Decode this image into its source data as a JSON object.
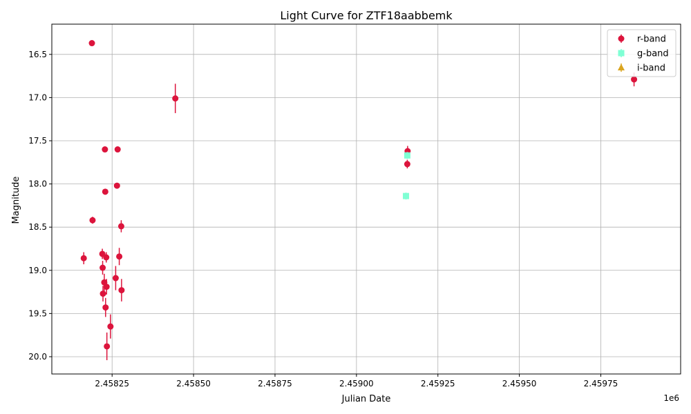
{
  "chart_data": {
    "type": "scatter",
    "title": "Light Curve for ZTF18aabbemk",
    "xlabel": "Julian Date",
    "ylabel": "Magnitude",
    "x_offset_label": "1e6",
    "xlim": [
      2458065,
      2459995
    ],
    "ylim": [
      20.2,
      16.15
    ],
    "y_inverted": true,
    "grid": true,
    "legend_position": "top-right",
    "x_ticks": [
      2458250,
      2458500,
      2458750,
      2459000,
      2459250,
      2459500,
      2459750
    ],
    "x_tick_labels": [
      "2.45825",
      "2.45850",
      "2.45875",
      "2.45900",
      "2.45925",
      "2.45950",
      "2.45975"
    ],
    "y_ticks": [
      16.5,
      17.0,
      17.5,
      18.0,
      18.5,
      19.0,
      19.5,
      20.0
    ],
    "y_tick_labels": [
      "16.5",
      "17.0",
      "17.5",
      "18.0",
      "18.5",
      "19.0",
      "19.5",
      "20.0"
    ],
    "series": [
      {
        "name": "r-band",
        "color": "#dc143c",
        "marker": "circle",
        "points": [
          {
            "x": 2458163,
            "y": 18.86,
            "err": 0.07
          },
          {
            "x": 2458188,
            "y": 16.37,
            "err": 0.02
          },
          {
            "x": 2458190,
            "y": 18.42,
            "err": 0.04
          },
          {
            "x": 2458220,
            "y": 18.81,
            "err": 0.06
          },
          {
            "x": 2458221,
            "y": 18.97,
            "err": 0.08
          },
          {
            "x": 2458222,
            "y": 19.27,
            "err": 0.09
          },
          {
            "x": 2458226,
            "y": 19.14,
            "err": 0.1
          },
          {
            "x": 2458228,
            "y": 17.6,
            "err": 0.02
          },
          {
            "x": 2458229,
            "y": 18.09,
            "err": 0.03
          },
          {
            "x": 2458230,
            "y": 19.43,
            "err": 0.11
          },
          {
            "x": 2458232,
            "y": 18.85,
            "err": 0.06
          },
          {
            "x": 2458233,
            "y": 19.19,
            "err": 0.09
          },
          {
            "x": 2458234,
            "y": 19.88,
            "err": 0.16
          },
          {
            "x": 2458245,
            "y": 19.65,
            "err": 0.14
          },
          {
            "x": 2458261,
            "y": 19.09,
            "err": 0.14
          },
          {
            "x": 2458265,
            "y": 18.02,
            "err": 0.03
          },
          {
            "x": 2458267,
            "y": 17.6,
            "err": 0.02
          },
          {
            "x": 2458272,
            "y": 18.84,
            "err": 0.1
          },
          {
            "x": 2458278,
            "y": 18.49,
            "err": 0.07
          },
          {
            "x": 2458279,
            "y": 19.23,
            "err": 0.13
          },
          {
            "x": 2458444,
            "y": 17.01,
            "err": 0.17
          },
          {
            "x": 2459157,
            "y": 17.62,
            "err": 0.06
          },
          {
            "x": 2459156,
            "y": 17.77,
            "err": 0.05
          },
          {
            "x": 2459852,
            "y": 16.79,
            "err": 0.08
          }
        ]
      },
      {
        "name": "g-band",
        "color": "#7fffd4",
        "marker": "square",
        "points": [
          {
            "x": 2459156,
            "y": 17.67,
            "err": 0.04
          },
          {
            "x": 2459152,
            "y": 18.14,
            "err": 0.04
          }
        ]
      },
      {
        "name": "i-band",
        "color": "#daa520",
        "marker": "triangle",
        "points": []
      }
    ]
  }
}
